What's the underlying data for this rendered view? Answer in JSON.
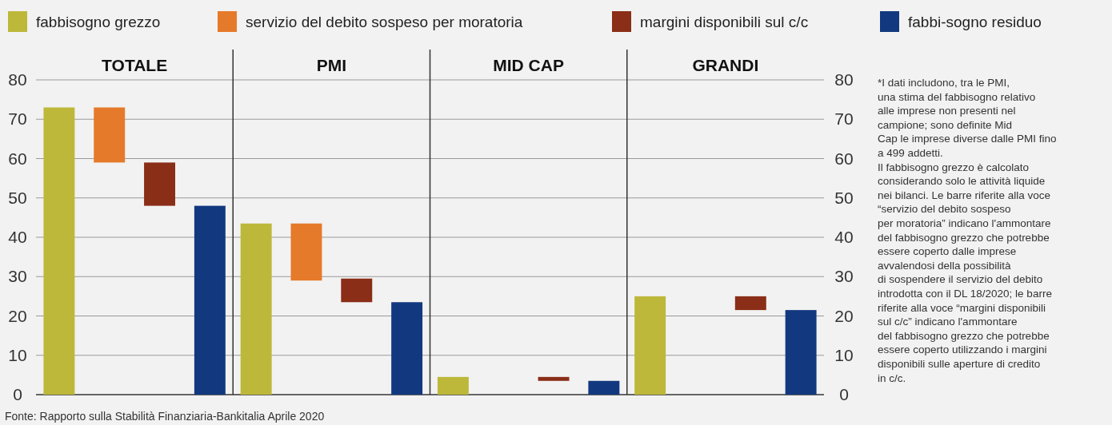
{
  "chart_data": {
    "type": "bar",
    "categories": [
      "TOTALE",
      "PMI",
      "MID CAP",
      "GRANDI"
    ],
    "series": [
      {
        "name": "fabbisogno grezzo",
        "color": "#bdb83a",
        "values": [
          73,
          43.5,
          4.5,
          25
        ]
      },
      {
        "name": "servizio del debito sospeso per moratoria",
        "color": "#e57a2a",
        "values": [
          14,
          14.5,
          null,
          null
        ],
        "base": [
          59,
          29,
          null,
          null
        ]
      },
      {
        "name": "margini disponibili sul c/c",
        "color": "#8a2e17",
        "values": [
          11,
          6,
          1,
          3.5
        ],
        "base": [
          48,
          23.5,
          3.5,
          21.5
        ]
      },
      {
        "name": "fabbi-sogno residuo",
        "color": "#12397f",
        "values": [
          48,
          23.5,
          3.5,
          21.5
        ]
      }
    ],
    "ylim": [
      0,
      80
    ],
    "yticks": [
      0,
      10,
      20,
      30,
      40,
      50,
      60,
      70,
      80
    ],
    "y2lim": [
      0,
      80
    ],
    "y2ticks": [
      0,
      10,
      20,
      30,
      40,
      50,
      60,
      70,
      80
    ],
    "grid": "y",
    "legend": "top",
    "annotations": [
      "*I dati includono, tra le PMI,\nuna stima del fabbisogno relativo\nalle imprese non presenti nel\ncampione; sono definite Mid\nCap le imprese diverse dalle PMI fino\na 499 addetti.\nIl fabbisogno grezzo è calcolato\nconsiderando solo le attività liquide\nnei bilanci. Le barre riferite alla voce\n“servizio del debito sospeso\nper moratoria” indicano l'ammontare\ndel fabbisogno grezzo che potrebbe\nessere coperto dalle imprese\navvalendosi della possibilità\ndi sospendere il servizio del debito\nintrodotta con il DL 18/2020; le barre\nriferite alla voce “margini disponibili\nsul c/c” indicano l'ammontare\ndel fabbisogno grezzo che potrebbe\nessere coperto utilizzando i margini\ndisponibili sulle aperture di credito\nin c/c.",
      "Fonte: Rapporto sulla Stabilità Finanziaria-Bankitalia Aprile 2020"
    ]
  }
}
